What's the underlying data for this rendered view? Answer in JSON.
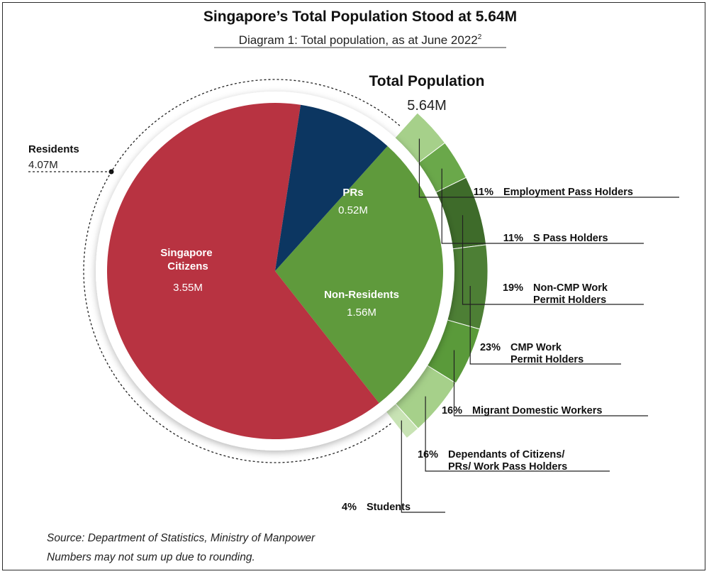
{
  "title": "Singapore’s Total Population Stood at 5.64M",
  "subtitle": "Diagram 1: Total population, as at June 2022",
  "subtitle_sup": "2",
  "total": {
    "label": "Total Population",
    "value": "5.64M"
  },
  "residents": {
    "label": "Residents",
    "value": "4.07M"
  },
  "chart_data": {
    "type": "pie",
    "title": "Total Population",
    "total": 5.64,
    "unit": "M",
    "slices": [
      {
        "label": "Non-Residents",
        "value": 1.56,
        "display": "1.56M",
        "color": "#5f9a3c"
      },
      {
        "label": "Singapore Citizens",
        "value": 3.55,
        "display": "3.55M",
        "color": "#b83341",
        "label_lines": [
          "Singapore",
          "Citizens"
        ]
      },
      {
        "label": "PRs",
        "value": 0.52,
        "display": "0.52M",
        "color": "#0c3661"
      }
    ],
    "residents_group": {
      "label": "Residents",
      "value": 4.07,
      "display": "4.07M",
      "members": [
        "Singapore Citizens",
        "PRs"
      ]
    },
    "non_resident_breakdown": [
      {
        "pct": "11%",
        "label_lines": [
          "Employment Pass Holders"
        ],
        "value": 11,
        "color": "#a6d08a"
      },
      {
        "pct": "11%",
        "label_lines": [
          "S Pass Holders"
        ],
        "value": 11,
        "color": "#6aa84a"
      },
      {
        "pct": "19%",
        "label_lines": [
          "Non-CMP Work",
          "Permit Holders"
        ],
        "value": 19,
        "color": "#3e6b2a"
      },
      {
        "pct": "23%",
        "label_lines": [
          "CMP Work",
          "Permit Holders"
        ],
        "value": 23,
        "color": "#4d7f35"
      },
      {
        "pct": "16%",
        "label_lines": [
          "Migrant Domestic Workers"
        ],
        "value": 16,
        "color": "#5a9a3a"
      },
      {
        "pct": "16%",
        "label_lines": [
          "Dependants of Citizens/",
          "PRs/ Work Pass Holders"
        ],
        "value": 16,
        "color": "#a6d08a"
      },
      {
        "pct": "4%",
        "label_lines": [
          "Students"
        ],
        "value": 4,
        "color": "#c8e3b4"
      }
    ]
  },
  "source_lines": [
    "Source: Department of Statistics, Ministry of Manpower",
    "Numbers may not sum up due to rounding."
  ]
}
